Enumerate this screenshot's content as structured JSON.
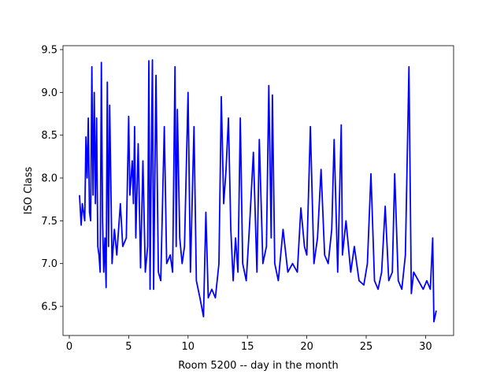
{
  "chart_data": {
    "type": "line",
    "xlabel": "Room 5200 -- day in the month",
    "ylabel": "ISO Class",
    "x": [
      0.86,
      1.0,
      1.1,
      1.3,
      1.4,
      1.5,
      1.6,
      1.7,
      1.8,
      1.9,
      2.0,
      2.1,
      2.2,
      2.3,
      2.4,
      2.5,
      2.6,
      2.7,
      2.8,
      2.9,
      3.0,
      3.1,
      3.2,
      3.3,
      3.4,
      3.6,
      3.8,
      4.0,
      4.3,
      4.5,
      4.8,
      5.0,
      5.1,
      5.3,
      5.4,
      5.5,
      5.6,
      5.8,
      6.0,
      6.2,
      6.4,
      6.6,
      6.7,
      6.8,
      6.9,
      7.0,
      7.1,
      7.3,
      7.5,
      7.7,
      8.0,
      8.2,
      8.5,
      8.7,
      8.9,
      9.0,
      9.1,
      9.3,
      9.5,
      9.7,
      10.0,
      10.2,
      10.5,
      10.7,
      11.0,
      11.3,
      11.5,
      11.7,
      12.0,
      12.3,
      12.6,
      12.8,
      13.0,
      13.2,
      13.4,
      13.6,
      13.8,
      14.0,
      14.2,
      14.4,
      14.6,
      14.9,
      15.2,
      15.5,
      15.8,
      16.0,
      16.3,
      16.6,
      16.8,
      17.0,
      17.1,
      17.3,
      17.6,
      18.0,
      18.4,
      18.8,
      19.2,
      19.5,
      19.8,
      20.0,
      20.3,
      20.6,
      20.9,
      21.2,
      21.5,
      21.8,
      22.1,
      22.3,
      22.6,
      22.9,
      23.0,
      23.3,
      23.7,
      24.0,
      24.4,
      24.8,
      25.1,
      25.4,
      25.7,
      26.0,
      26.3,
      26.6,
      26.9,
      27.2,
      27.4,
      27.7,
      28.0,
      28.3,
      28.6,
      28.8,
      29.0,
      29.4,
      29.8,
      30.1,
      30.4,
      30.6,
      30.7,
      30.9
    ],
    "series": [
      {
        "color": "#0000ff",
        "values": [
          7.8,
          7.45,
          7.7,
          7.5,
          8.48,
          8.0,
          8.7,
          7.6,
          7.5,
          9.3,
          7.8,
          9.0,
          7.7,
          8.7,
          7.2,
          7.1,
          6.9,
          9.35,
          7.5,
          6.9,
          7.3,
          6.72,
          9.12,
          7.2,
          8.85,
          7.0,
          7.4,
          7.1,
          7.7,
          7.2,
          7.3,
          8.72,
          7.8,
          8.2,
          7.7,
          8.6,
          7.3,
          8.4,
          6.95,
          8.2,
          6.9,
          7.2,
          9.37,
          6.7,
          8.2,
          9.38,
          6.7,
          9.2,
          6.9,
          6.8,
          8.6,
          7.0,
          7.1,
          6.9,
          9.3,
          7.2,
          8.8,
          7.3,
          7.0,
          7.2,
          9.0,
          6.9,
          8.6,
          6.8,
          6.6,
          6.38,
          7.6,
          6.6,
          6.7,
          6.6,
          7.0,
          8.95,
          7.7,
          8.1,
          8.7,
          7.4,
          6.8,
          7.3,
          6.9,
          8.7,
          7.0,
          6.8,
          7.5,
          8.3,
          6.9,
          8.45,
          7.0,
          7.2,
          9.08,
          7.3,
          8.97,
          7.0,
          6.8,
          7.4,
          6.9,
          7.0,
          6.9,
          7.65,
          7.2,
          7.1,
          8.6,
          7.0,
          7.3,
          8.1,
          7.1,
          7.0,
          7.4,
          8.45,
          6.9,
          8.62,
          7.1,
          7.5,
          6.9,
          7.2,
          6.8,
          6.75,
          7.0,
          8.05,
          6.8,
          6.7,
          6.9,
          7.67,
          6.8,
          6.9,
          8.05,
          6.8,
          6.7,
          7.1,
          9.3,
          6.65,
          6.9,
          6.8,
          6.7,
          6.8,
          6.7,
          7.3,
          6.32,
          6.45
        ]
      }
    ],
    "xlim": [
      -0.53,
      32.36
    ],
    "ylim": [
      6.16,
      9.546
    ],
    "xticks": [
      0,
      5,
      10,
      15,
      20,
      25,
      30
    ],
    "yticks": [
      6.5,
      {
        "value": 7,
        "label": "7.0"
      },
      7.5,
      {
        "value": 8,
        "label": "8.0"
      },
      8.5,
      {
        "value": 9,
        "label": "9.0"
      },
      9.5
    ]
  }
}
